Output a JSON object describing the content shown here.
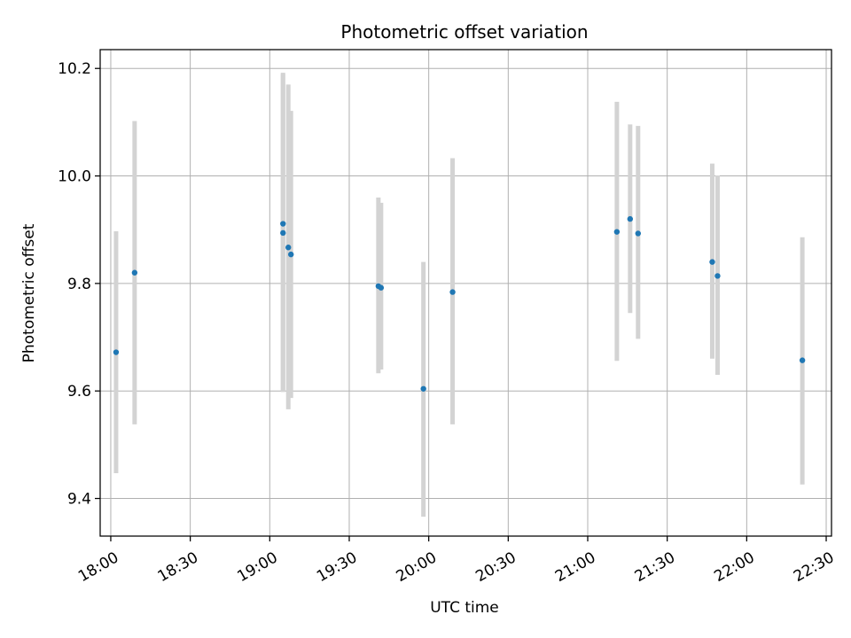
{
  "chart_data": {
    "type": "scatter",
    "title": "Photometric offset variation",
    "xlabel": "UTC time",
    "ylabel": "Photometric offset",
    "grid": true,
    "xlim": [
      "17:56",
      "22:32"
    ],
    "ylim": [
      9.33,
      10.235
    ],
    "x_ticks": [
      "18:00",
      "18:30",
      "19:00",
      "19:30",
      "20:00",
      "20:30",
      "21:00",
      "21:30",
      "22:00",
      "22:30"
    ],
    "y_ticks": [
      9.4,
      9.6,
      9.8,
      10.0,
      10.2
    ],
    "y_tick_labels": [
      "9.4",
      "9.6",
      "9.8",
      "10.0",
      "10.2"
    ],
    "colors": {
      "marker": "#1f77b4",
      "errorbar": "#d3d3d3",
      "grid": "#b0b0b0"
    },
    "series": [
      {
        "points": [
          {
            "x": "18:02",
            "y": 9.672,
            "ylow": 9.447,
            "yhigh": 9.897
          },
          {
            "x": "18:09",
            "y": 9.82,
            "ylow": 9.538,
            "yhigh": 10.102
          },
          {
            "x": "19:05",
            "y": 9.911,
            "ylow": 9.598,
            "yhigh": 10.192
          },
          {
            "x": "19:05",
            "y": 9.894,
            "ylow": 9.6,
            "yhigh": 10.19
          },
          {
            "x": "19:07",
            "y": 9.867,
            "ylow": 9.566,
            "yhigh": 10.17
          },
          {
            "x": "19:08",
            "y": 9.854,
            "ylow": 9.587,
            "yhigh": 10.121
          },
          {
            "x": "19:41",
            "y": 9.795,
            "ylow": 9.633,
            "yhigh": 9.96
          },
          {
            "x": "19:42",
            "y": 9.792,
            "ylow": 9.64,
            "yhigh": 9.95
          },
          {
            "x": "19:58",
            "y": 9.604,
            "ylow": 9.366,
            "yhigh": 9.84
          },
          {
            "x": "20:09",
            "y": 9.784,
            "ylow": 9.538,
            "yhigh": 10.033
          },
          {
            "x": "21:11",
            "y": 9.896,
            "ylow": 9.656,
            "yhigh": 10.138
          },
          {
            "x": "21:16",
            "y": 9.92,
            "ylow": 9.745,
            "yhigh": 10.096
          },
          {
            "x": "21:19",
            "y": 9.893,
            "ylow": 9.697,
            "yhigh": 10.093
          },
          {
            "x": "21:47",
            "y": 9.84,
            "ylow": 9.66,
            "yhigh": 10.023
          },
          {
            "x": "21:49",
            "y": 9.814,
            "ylow": 9.63,
            "yhigh": 10.001
          },
          {
            "x": "22:21",
            "y": 9.657,
            "ylow": 9.426,
            "yhigh": 9.886
          }
        ]
      }
    ]
  }
}
